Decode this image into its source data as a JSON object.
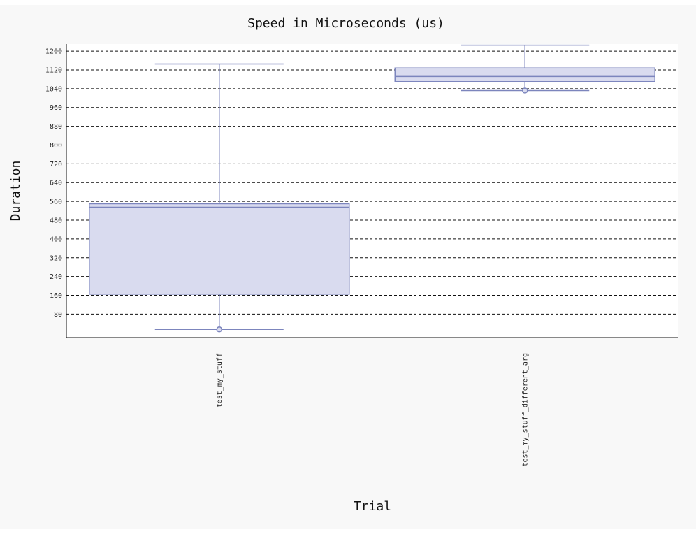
{
  "chart_data": {
    "type": "box",
    "title": "Speed in Microseconds (us)",
    "xlabel": "Trial",
    "ylabel": "Duration",
    "ylim": [
      -20,
      1230
    ],
    "y_ticks": [
      80,
      160,
      240,
      320,
      400,
      480,
      560,
      640,
      720,
      800,
      880,
      960,
      1040,
      1120,
      1200
    ],
    "grid": true,
    "categories": [
      "test_my_stuff",
      "test_my_stuff_different_arg"
    ],
    "boxes": [
      {
        "category": "test_my_stuff",
        "whisker_low": 15,
        "q1": 165,
        "median": 535,
        "q3": 550,
        "whisker_high": 1145,
        "outliers": [
          15
        ]
      },
      {
        "category": "test_my_stuff_different_arg",
        "whisker_low": 1032,
        "q1": 1070,
        "median": 1092,
        "q3": 1128,
        "whisker_high": 1225,
        "outliers": [
          1032
        ]
      }
    ],
    "colors": {
      "box_fill": "#d9dbef",
      "box_stroke": "#7c85bd",
      "grid": "#111111",
      "axis": "#111111"
    }
  }
}
